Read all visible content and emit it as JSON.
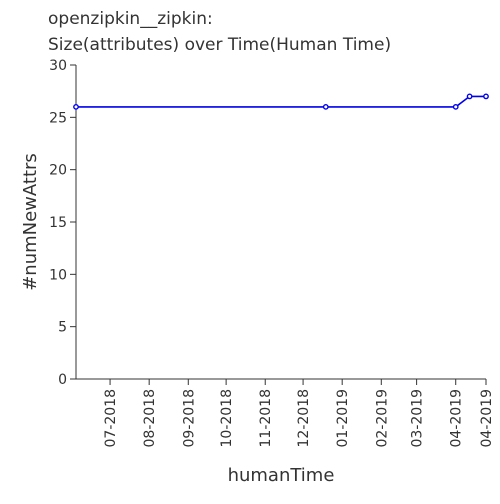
{
  "chart_data": {
    "type": "line",
    "title_lines": [
      "openzipkin__zipkin:",
      "Size(attributes) over Time(Human Time)"
    ],
    "xlabel": "humanTime",
    "ylabel": "#numNewAttrs",
    "ylim": [
      0,
      30
    ],
    "yticks": [
      0,
      5,
      10,
      15,
      20,
      25,
      30
    ],
    "xlim": [
      "2018-06-04",
      "2019-04-25"
    ],
    "xticks": [
      {
        "date": "2018-07-01",
        "label": "07-2018"
      },
      {
        "date": "2018-08-01",
        "label": "08-2018"
      },
      {
        "date": "2018-09-01",
        "label": "09-2018"
      },
      {
        "date": "2018-10-01",
        "label": "10-2018"
      },
      {
        "date": "2018-11-01",
        "label": "11-2018"
      },
      {
        "date": "2018-12-01",
        "label": "12-2018"
      },
      {
        "date": "2019-01-01",
        "label": "01-2019"
      },
      {
        "date": "2019-02-01",
        "label": "02-2019"
      },
      {
        "date": "2019-03-01",
        "label": "03-2019"
      },
      {
        "date": "2019-04-01",
        "label": "04-2019"
      },
      {
        "date": "2019-04-25",
        "label": "04-2019"
      }
    ],
    "grid": false,
    "line_color": "#0000ee",
    "series": [
      {
        "x": [
          "2018-06-04",
          "2018-12-19",
          "2019-04-01",
          "2019-04-12",
          "2019-04-25"
        ],
        "y": [
          26,
          26,
          26,
          27,
          27
        ]
      }
    ]
  }
}
